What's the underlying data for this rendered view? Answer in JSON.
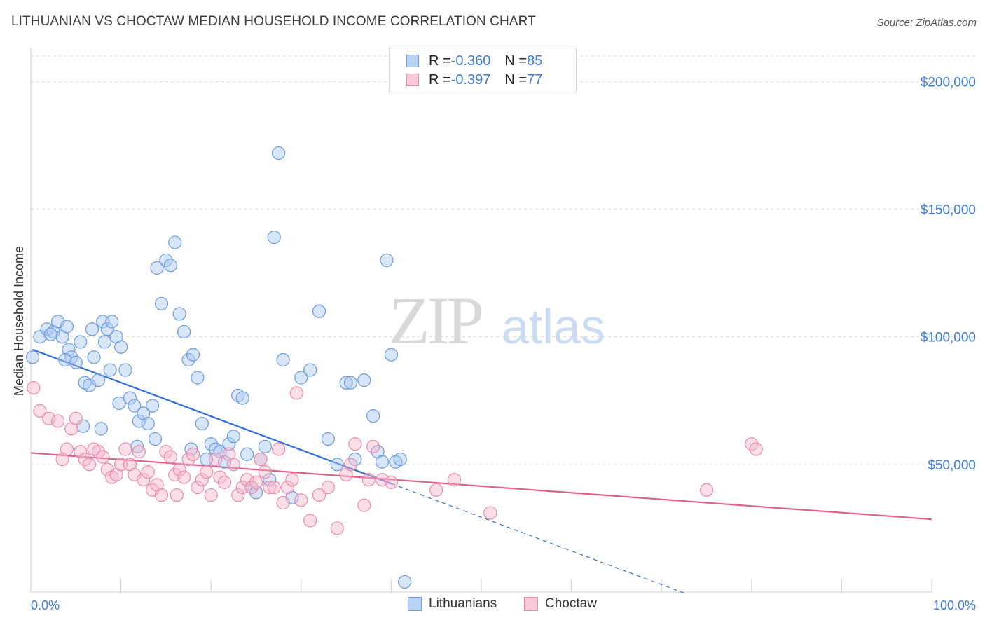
{
  "header": {
    "title": "LITHUANIAN VS CHOCTAW MEDIAN HOUSEHOLD INCOME CORRELATION CHART",
    "source": "Source: ZipAtlas.com"
  },
  "watermark": {
    "zip": "ZIP",
    "atlas": "atlas"
  },
  "legend": {
    "rows": [
      {
        "r_label": "R = ",
        "r_value": "-0.360",
        "n_label": "N = ",
        "n_value": "85"
      },
      {
        "r_label": "R = ",
        "r_value": "-0.397",
        "n_label": "N = ",
        "n_value": "77"
      }
    ]
  },
  "colors": {
    "lithuanians_fill": "#a9c8f0",
    "lithuanians_stroke": "#6a9be0",
    "lithuanians_line": "#2f6fd6",
    "choctaw_fill": "#f6b8cd",
    "choctaw_stroke": "#e98bab",
    "choctaw_line": "#e0608c",
    "tick_text": "#3d7bd9"
  },
  "chart_data": {
    "type": "scatter",
    "title": "LITHUANIAN VS CHOCTAW MEDIAN HOUSEHOLD INCOME CORRELATION CHART",
    "xlabel": "",
    "ylabel": "Median Household Income",
    "xlim": [
      0,
      100
    ],
    "ylim": [
      0,
      210000
    ],
    "x_tick_labels": [
      "0.0%",
      "100.0%"
    ],
    "y_ticks": [
      50000,
      100000,
      150000,
      200000
    ],
    "y_tick_labels": [
      "$50,000",
      "$100,000",
      "$150,000",
      "$200,000"
    ],
    "grid": "horizontal dashed",
    "legend_position": "top-center and bottom",
    "series": [
      {
        "name": "Lithuanians",
        "r": -0.36,
        "n": 85,
        "trend": {
          "x0": 0.2,
          "y0": 95000,
          "x1": 40,
          "y1": 42500,
          "extends_dashed_to_x": 72.8
        },
        "points": [
          [
            0.2,
            92000
          ],
          [
            1,
            100000
          ],
          [
            1.8,
            103000
          ],
          [
            2.5,
            102000
          ],
          [
            3,
            106000
          ],
          [
            3.5,
            100000
          ],
          [
            4,
            104000
          ],
          [
            4.2,
            95000
          ],
          [
            4.5,
            92000
          ],
          [
            5,
            90000
          ],
          [
            5.5,
            98000
          ],
          [
            6,
            82000
          ],
          [
            6.5,
            81000
          ],
          [
            7,
            92000
          ],
          [
            7.5,
            83000
          ],
          [
            8,
            106000
          ],
          [
            8.2,
            98000
          ],
          [
            8.5,
            103000
          ],
          [
            9,
            106000
          ],
          [
            9.5,
            100000
          ],
          [
            10,
            96000
          ],
          [
            10.5,
            87000
          ],
          [
            11,
            76000
          ],
          [
            11.5,
            73000
          ],
          [
            12,
            67000
          ],
          [
            12.5,
            70000
          ],
          [
            13,
            66000
          ],
          [
            13.5,
            73000
          ],
          [
            14,
            127000
          ],
          [
            14.5,
            113000
          ],
          [
            15,
            130000
          ],
          [
            15.5,
            128000
          ],
          [
            16,
            137000
          ],
          [
            16.5,
            109000
          ],
          [
            17,
            102000
          ],
          [
            17.5,
            91000
          ],
          [
            18,
            93000
          ],
          [
            18.5,
            84000
          ],
          [
            19,
            66000
          ],
          [
            19.5,
            52000
          ],
          [
            20,
            58000
          ],
          [
            20.5,
            56000
          ],
          [
            21,
            55000
          ],
          [
            21.5,
            51000
          ],
          [
            22,
            58000
          ],
          [
            22.5,
            61000
          ],
          [
            23,
            77000
          ],
          [
            23.5,
            76000
          ],
          [
            24,
            54000
          ],
          [
            24.5,
            41000
          ],
          [
            25,
            39000
          ],
          [
            25.5,
            52000
          ],
          [
            26,
            57000
          ],
          [
            26.5,
            44000
          ],
          [
            27,
            139000
          ],
          [
            27.5,
            172000
          ],
          [
            28,
            91000
          ],
          [
            29,
            37000
          ],
          [
            30,
            84000
          ],
          [
            31,
            87000
          ],
          [
            32,
            110000
          ],
          [
            33,
            60000
          ],
          [
            34,
            50000
          ],
          [
            35,
            82000
          ],
          [
            36,
            52000
          ],
          [
            37,
            83000
          ],
          [
            38,
            69000
          ],
          [
            38.5,
            55000
          ],
          [
            39,
            51000
          ],
          [
            39.5,
            130000
          ],
          [
            40,
            93000
          ],
          [
            40.5,
            51000
          ],
          [
            41,
            52000
          ],
          [
            41.5,
            4000
          ],
          [
            5.8,
            65000
          ],
          [
            7.8,
            64000
          ],
          [
            9.8,
            74000
          ],
          [
            11.8,
            57000
          ],
          [
            13.8,
            60000
          ],
          [
            2.2,
            101000
          ],
          [
            3.8,
            91000
          ],
          [
            6.8,
            103000
          ],
          [
            8.8,
            87000
          ],
          [
            17.8,
            56000
          ],
          [
            35.5,
            82000
          ]
        ]
      },
      {
        "name": "Choctaw",
        "r": -0.397,
        "n": 77,
        "trend": {
          "x0": 0,
          "y0": 54500,
          "x1": 100,
          "y1": 28500
        },
        "points": [
          [
            0.3,
            80000
          ],
          [
            1,
            71000
          ],
          [
            2,
            68000
          ],
          [
            3,
            67000
          ],
          [
            4,
            56000
          ],
          [
            4.5,
            64000
          ],
          [
            5,
            68000
          ],
          [
            5.5,
            55000
          ],
          [
            6,
            52000
          ],
          [
            6.5,
            50000
          ],
          [
            7,
            56000
          ],
          [
            7.5,
            55000
          ],
          [
            8,
            53000
          ],
          [
            8.5,
            48000
          ],
          [
            9,
            45000
          ],
          [
            9.5,
            46000
          ],
          [
            10,
            50000
          ],
          [
            10.5,
            56000
          ],
          [
            11,
            50000
          ],
          [
            11.5,
            46000
          ],
          [
            12,
            55000
          ],
          [
            12.5,
            44000
          ],
          [
            13,
            47000
          ],
          [
            13.5,
            40000
          ],
          [
            14,
            42000
          ],
          [
            14.5,
            38000
          ],
          [
            15,
            55000
          ],
          [
            15.5,
            53000
          ],
          [
            16,
            46000
          ],
          [
            16.5,
            48000
          ],
          [
            17,
            45000
          ],
          [
            17.5,
            52000
          ],
          [
            18,
            54000
          ],
          [
            18.5,
            41000
          ],
          [
            19,
            44000
          ],
          [
            19.5,
            47000
          ],
          [
            20,
            38000
          ],
          [
            20.5,
            52000
          ],
          [
            21,
            45000
          ],
          [
            21.5,
            43000
          ],
          [
            22,
            54000
          ],
          [
            22.5,
            50000
          ],
          [
            23,
            38000
          ],
          [
            23.5,
            41000
          ],
          [
            24,
            44000
          ],
          [
            24.5,
            41000
          ],
          [
            25,
            43000
          ],
          [
            25.5,
            52000
          ],
          [
            26,
            47000
          ],
          [
            26.5,
            41000
          ],
          [
            27,
            41000
          ],
          [
            27.5,
            56000
          ],
          [
            28,
            35000
          ],
          [
            28.5,
            41000
          ],
          [
            29,
            44000
          ],
          [
            29.5,
            78000
          ],
          [
            30,
            36000
          ],
          [
            31,
            28000
          ],
          [
            32,
            38000
          ],
          [
            33,
            41000
          ],
          [
            34,
            25000
          ],
          [
            35,
            46000
          ],
          [
            35.5,
            50000
          ],
          [
            36,
            58000
          ],
          [
            37,
            34000
          ],
          [
            37.5,
            44000
          ],
          [
            38,
            57000
          ],
          [
            39,
            44000
          ],
          [
            40,
            43000
          ],
          [
            45,
            40000
          ],
          [
            47,
            44000
          ],
          [
            51,
            31000
          ],
          [
            75,
            40000
          ],
          [
            80,
            58000
          ],
          [
            80.5,
            56000
          ],
          [
            3.5,
            52000
          ],
          [
            16.2,
            38000
          ]
        ]
      }
    ]
  },
  "bottom_legend": {
    "items": [
      "Lithuanians",
      "Choctaw"
    ]
  }
}
